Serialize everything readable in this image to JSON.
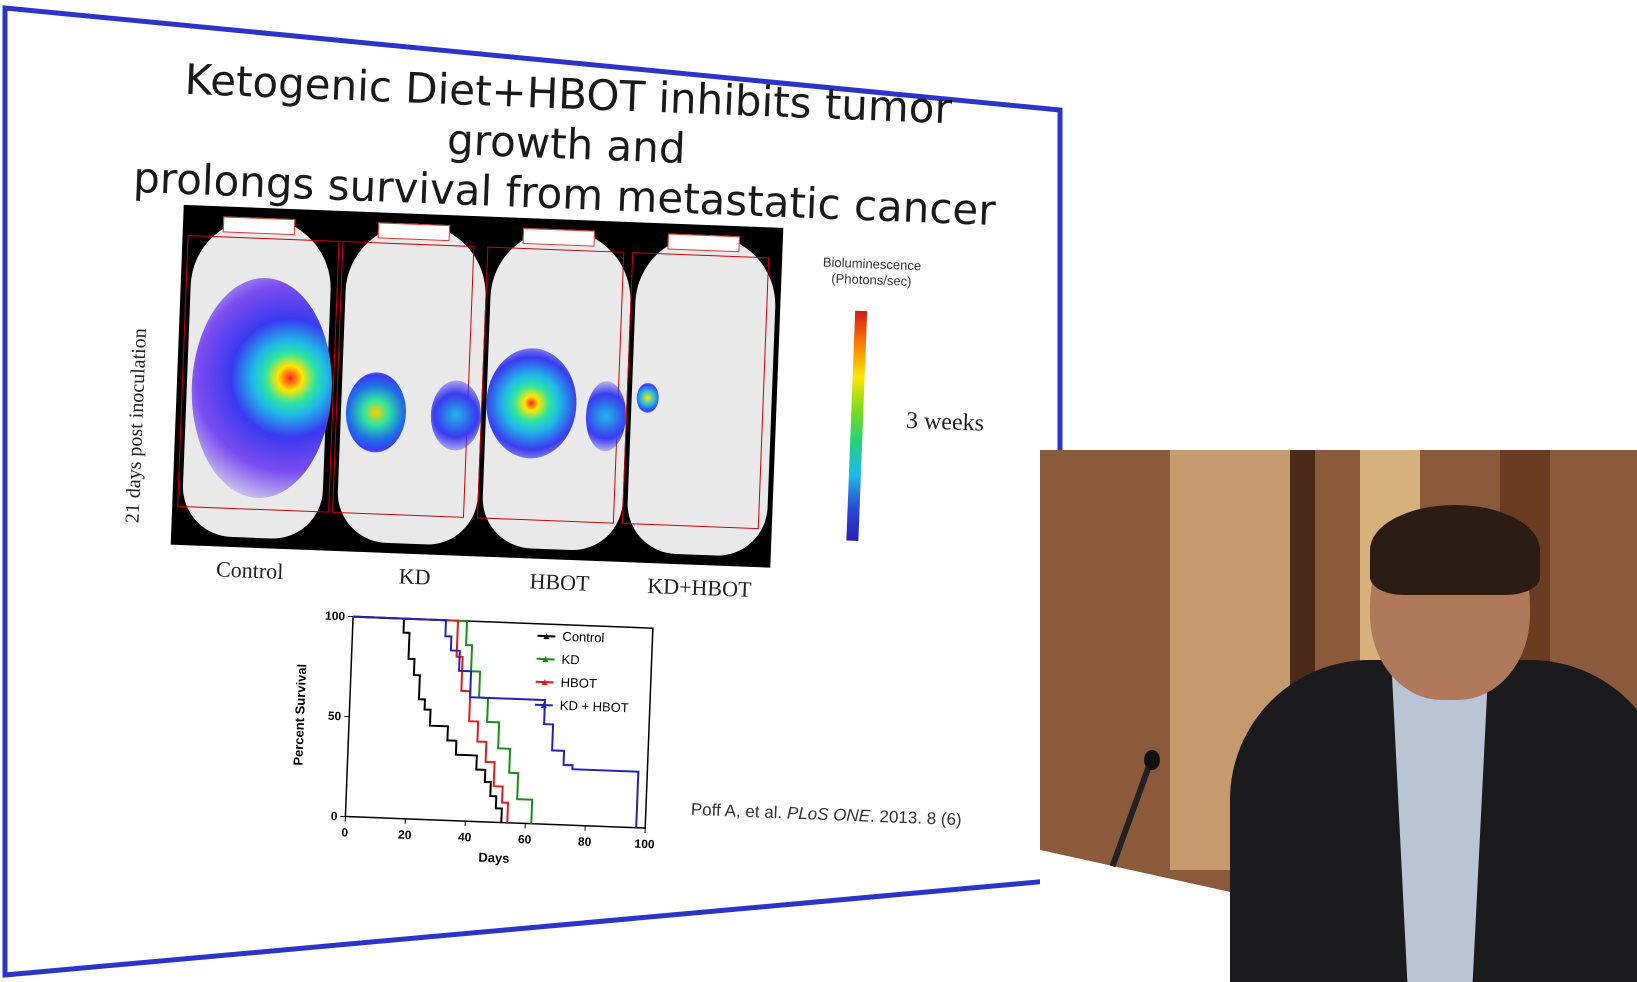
{
  "slide": {
    "title_line1": "Ketogenic Diet+HBOT inhibits tumor growth and",
    "title_line2": "prolongs survival from metastatic cancer",
    "imaging": {
      "vertical_label": "21 days post inoculation",
      "groups": [
        "Control",
        "KD",
        "HBOT",
        "KD+HBOT"
      ],
      "scale_title_line1": "Bioluminescence",
      "scale_title_line2": "(Photons/sec)",
      "timepoint": "3 weeks"
    },
    "citation_authors": "Poff A,  et al.",
    "citation_journal": "PLoS ONE",
    "citation_rest": ". 2013. 8 (6)"
  },
  "colors": {
    "border": "#2b34c9",
    "control": "#000000",
    "kd": "#1e8a1e",
    "hbot": "#d61f1f",
    "kd_hbot": "#2323b5"
  },
  "chart_data": {
    "type": "line",
    "xlabel": "Days",
    "ylabel": "Percent Survival",
    "xlim": [
      0,
      100
    ],
    "ylim": [
      0,
      100
    ],
    "xticks": [
      0,
      20,
      40,
      60,
      80,
      100
    ],
    "yticks": [
      0,
      50,
      100
    ],
    "legend_position": "top-right",
    "series": [
      {
        "name": "Control",
        "x": [
          0,
          15,
          17,
          19,
          21,
          23,
          25,
          27,
          30,
          33,
          36,
          40,
          43,
          46,
          48,
          50,
          52
        ],
        "y": [
          100,
          100,
          93,
          80,
          72,
          60,
          55,
          47,
          47,
          40,
          33,
          33,
          26,
          20,
          13,
          7,
          0
        ]
      },
      {
        "name": "KD",
        "x": [
          0,
          36,
          38,
          40,
          43,
          46,
          50,
          54,
          57,
          60,
          62
        ],
        "y": [
          100,
          100,
          88,
          75,
          62,
          50,
          37,
          25,
          12,
          12,
          0
        ]
      },
      {
        "name": "HBOT",
        "x": [
          0,
          33,
          35,
          37,
          40,
          43,
          46,
          49,
          52,
          54
        ],
        "y": [
          100,
          100,
          82,
          65,
          50,
          40,
          30,
          18,
          10,
          0
        ]
      },
      {
        "name": "KD + HBOT",
        "x": [
          0,
          28,
          31,
          33,
          36,
          40,
          50,
          65,
          68,
          72,
          75,
          95,
          97
        ],
        "y": [
          100,
          100,
          92,
          85,
          75,
          62,
          62,
          50,
          37,
          30,
          28,
          28,
          0
        ]
      }
    ]
  }
}
